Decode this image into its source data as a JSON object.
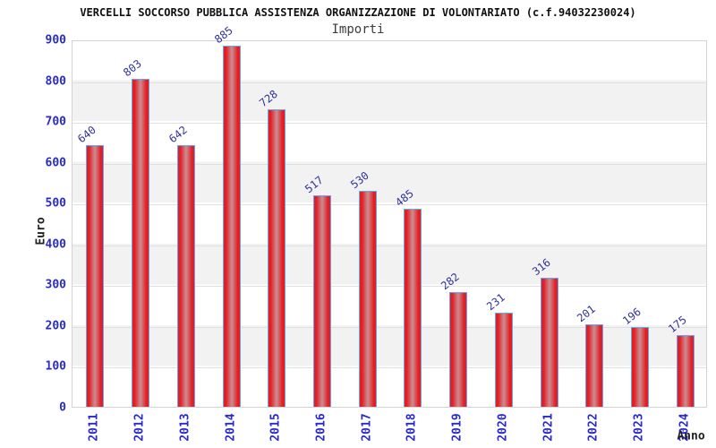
{
  "header": {
    "title": "VERCELLI SOCCORSO PUBBLICA ASSISTENZA ORGANIZZAZIONE DI VOLONTARIATO (c.f.94032230024)",
    "subtitle": "Importi"
  },
  "chart_data": {
    "type": "bar",
    "title": "VERCELLI SOCCORSO PUBBLICA ASSISTENZA ORGANIZZAZIONE DI VOLONTARIATO (c.f.94032230024)",
    "subtitle": "Importi",
    "xlabel": "Anno",
    "ylabel": "Euro",
    "categories": [
      "2011",
      "2012",
      "2013",
      "2014",
      "2015",
      "2016",
      "2017",
      "2018",
      "2019",
      "2020",
      "2021",
      "2022",
      "2023",
      "2024"
    ],
    "values": [
      640,
      803,
      642,
      885,
      728,
      517,
      530,
      485,
      282,
      231,
      316,
      201,
      196,
      175
    ],
    "ylim": [
      0,
      900
    ],
    "ytick_step": 100,
    "yticks": [
      0,
      100,
      200,
      300,
      400,
      500,
      600,
      700,
      800,
      900
    ],
    "grid": true,
    "legend_position": "none",
    "bar_labels_rotation_deg": -38,
    "xtick_rotation_deg": -90,
    "colors": {
      "bar_edge_red": "#e41e25",
      "bar_center": "#c98f94",
      "bar_border_blue": "#5fa8ee",
      "tick_label_blue": "#2a2acc",
      "value_label_navy": "#333399",
      "band_gray": "#f2f2f2",
      "gridline_gray": "#e0e0e0",
      "plot_border_gray": "#d4d4d4"
    }
  }
}
